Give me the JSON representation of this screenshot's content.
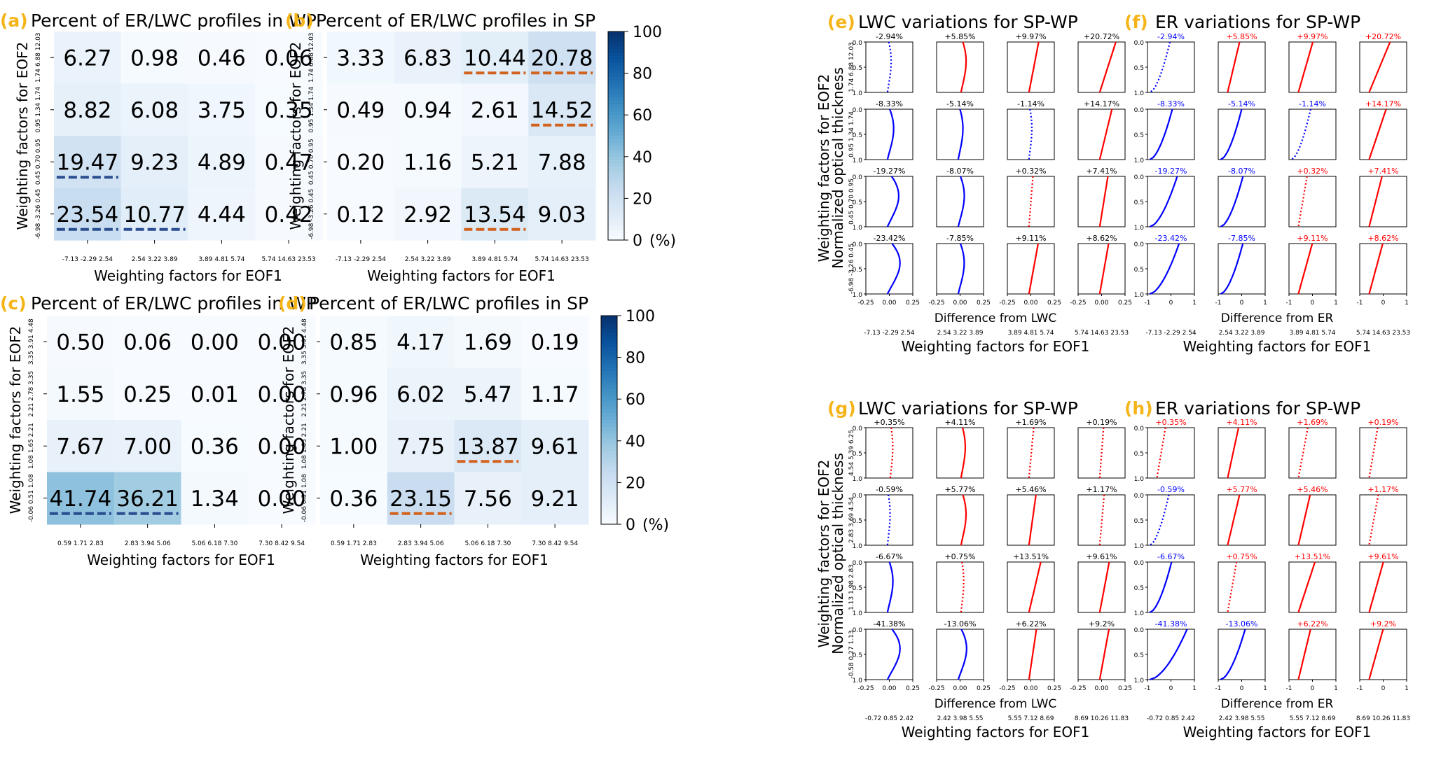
{
  "colors": {
    "panel_letter": "#F5B417",
    "underline_blue": "#2A4E8F",
    "underline_orange": "#D2631E",
    "line_blue": "#0000FF",
    "line_red": "#FF0000"
  },
  "colorbar": {
    "ticks": [
      "100",
      "80",
      "60",
      "40",
      "20",
      "0"
    ],
    "unit": "(%)"
  },
  "chart_data": [
    {
      "id": "a",
      "type": "heatmap",
      "letter": "(a)",
      "title": "Percent of ER/LWC profiles in WP",
      "xlabel": "Weighting factors for EOF1",
      "ylabel": "Weighting factors for EOF2",
      "x_ticks": [
        "-7.13 -2.29 2.54",
        "2.54 3.22 3.89",
        "3.89 4.81 5.74",
        "5.74 14.63 23.53"
      ],
      "y_ticks": [
        "-6.98 -3.26 0.45",
        "0.45 0.70 0.95",
        "0.95 1.34 1.74",
        "1.74 6.88 12.03"
      ],
      "values": [
        [
          6.27,
          0.98,
          0.46,
          0.06
        ],
        [
          8.82,
          6.08,
          3.75,
          0.35
        ],
        [
          19.47,
          9.23,
          4.89,
          0.47
        ],
        [
          23.54,
          10.77,
          4.44,
          0.42
        ]
      ],
      "labels": [
        [
          "6.27",
          "0.98",
          "0.46",
          "0.06"
        ],
        [
          "8.82",
          "6.08",
          "3.75",
          "0.35"
        ],
        [
          "19.47",
          "9.23",
          "4.89",
          "0.47"
        ],
        [
          "23.54",
          "10.77",
          "4.44",
          "0.42"
        ]
      ],
      "underlined": [
        [
          2,
          0
        ],
        [
          3,
          0
        ],
        [
          3,
          1
        ]
      ],
      "underline_color": "blue",
      "vmin": 0,
      "vmax": 100
    },
    {
      "id": "b",
      "type": "heatmap",
      "letter": "(b)",
      "title": "Percent of ER/LWC profiles in SP",
      "xlabel": "Weighting factors for EOF1",
      "ylabel": "Weighting factors for EOF2",
      "x_ticks": [
        "-7.13 -2.29 2.54",
        "2.54 3.22 3.89",
        "3.89 4.81 5.74",
        "5.74 14.63 23.53"
      ],
      "y_ticks": [
        "-6.98 -3.26 0.45",
        "0.45 0.70 0.95",
        "0.95 1.34 1.74",
        "1.74 6.88 12.03"
      ],
      "values": [
        [
          3.33,
          6.83,
          10.44,
          20.78
        ],
        [
          0.49,
          0.94,
          2.61,
          14.52
        ],
        [
          0.2,
          1.16,
          5.21,
          7.88
        ],
        [
          0.12,
          2.92,
          13.54,
          9.03
        ]
      ],
      "labels": [
        [
          "3.33",
          "6.83",
          "10.44",
          "20.78"
        ],
        [
          "0.49",
          "0.94",
          "2.61",
          "14.52"
        ],
        [
          "0.20",
          "1.16",
          "5.21",
          "7.88"
        ],
        [
          "0.12",
          "2.92",
          "13.54",
          "9.03"
        ]
      ],
      "underlined": [
        [
          0,
          2
        ],
        [
          0,
          3
        ],
        [
          1,
          3
        ],
        [
          3,
          2
        ]
      ],
      "underline_color": "orange",
      "vmin": 0,
      "vmax": 100
    },
    {
      "id": "c",
      "type": "heatmap",
      "letter": "(c)",
      "title": "Percent of ER/LWC profiles in WP",
      "xlabel": "Weighting factors for EOF1",
      "ylabel": "Weighting factors for EOF2",
      "x_ticks": [
        "0.59 1.71 2.83",
        "2.83 3.94 5.06",
        "5.06 6.18 7.30",
        "7.30 8.42 9.54"
      ],
      "y_ticks": [
        "-0.06 0.51 1.08",
        "1.08 1.65 2.21",
        "2.21 2.78 3.35",
        "3.35 3.91 4.48"
      ],
      "values": [
        [
          0.5,
          0.06,
          0.0,
          0.0
        ],
        [
          1.55,
          0.25,
          0.01,
          0.0
        ],
        [
          7.67,
          7.0,
          0.36,
          0.0
        ],
        [
          41.74,
          36.21,
          1.34,
          0.0
        ]
      ],
      "labels": [
        [
          "0.50",
          "0.06",
          "0.00",
          "0.00"
        ],
        [
          "1.55",
          "0.25",
          "0.01",
          "0.00"
        ],
        [
          "7.67",
          "7.00",
          "0.36",
          "0.00"
        ],
        [
          "41.74",
          "36.21",
          "1.34",
          "0.00"
        ]
      ],
      "underlined": [
        [
          3,
          0
        ],
        [
          3,
          1
        ]
      ],
      "underline_color": "blue",
      "vmin": 0,
      "vmax": 100
    },
    {
      "id": "d",
      "type": "heatmap",
      "letter": "(d)",
      "title": "Percent of ER/LWC profiles in SP",
      "xlabel": "Weighting factors for EOF1",
      "ylabel": "Weighting factors for EOF2",
      "x_ticks": [
        "0.59 1.71 2.83",
        "2.83 3.94 5.06",
        "5.06 6.18 7.30",
        "7.30 8.42 9.54"
      ],
      "y_ticks": [
        "-0.06 0.51 1.08",
        "1.08 1.65 2.21",
        "2.21 2.78 3.35",
        "3.35 3.91 4.48"
      ],
      "values": [
        [
          0.85,
          4.17,
          1.69,
          0.19
        ],
        [
          0.96,
          6.02,
          5.47,
          1.17
        ],
        [
          1.0,
          7.75,
          13.87,
          9.61
        ],
        [
          0.36,
          23.15,
          7.56,
          9.21
        ]
      ],
      "labels": [
        [
          "0.85",
          "4.17",
          "1.69",
          "0.19"
        ],
        [
          "0.96",
          "6.02",
          "5.47",
          "1.17"
        ],
        [
          "1.00",
          "7.75",
          "13.87",
          "9.61"
        ],
        [
          "0.36",
          "23.15",
          "7.56",
          "9.21"
        ]
      ],
      "underlined": [
        [
          2,
          2
        ],
        [
          3,
          1
        ]
      ],
      "underline_color": "orange",
      "vmin": 0,
      "vmax": 100
    },
    {
      "id": "e",
      "type": "line",
      "letter": "(e)",
      "title": "LWC variations for SP-WP",
      "kind": "lwc",
      "xlabel_inner": "Difference from LWC",
      "xlabel": "Weighting factors for EOF1",
      "ylabel": "Weighting factors for EOF2",
      "ylabel_inner": "Normalized optical thickness",
      "x_ticks": [
        "-7.13 -2.29 2.54",
        "2.54 3.22 3.89",
        "3.89 4.81 5.74",
        "5.74 14.63 23.53"
      ],
      "y_ticks": [
        "-6.98 -3.26 0.45",
        "0.45 0.70 0.95",
        "0.95 1.34 1.74",
        "1.74 6.88 12.03"
      ],
      "y_range": [
        0,
        1
      ],
      "x_range": [
        -0.25,
        0.25
      ],
      "y_tick_labels": [
        "0.0",
        "0.5",
        "1.0"
      ],
      "x_tick_labels": [
        "-0.25",
        "0.00",
        "0.25"
      ],
      "pct": [
        [
          "-2.94%",
          "+5.85%",
          "+9.97%",
          "+20.72%"
        ],
        [
          "-8.33%",
          "-5.14%",
          "-1.14%",
          "+14.17%"
        ],
        [
          "-19.27%",
          "-8.07%",
          "+0.32%",
          "+7.41%"
        ],
        [
          "-23.42%",
          "-7.85%",
          "+9.11%",
          "+8.62%"
        ]
      ],
      "line_color": [
        [
          "blue",
          "red",
          "red",
          "red"
        ],
        [
          "blue",
          "blue",
          "blue",
          "red"
        ],
        [
          "blue",
          "blue",
          "red",
          "red"
        ],
        [
          "blue",
          "blue",
          "red",
          "red"
        ]
      ],
      "dotted": [
        [
          true,
          false,
          false,
          false
        ],
        [
          false,
          false,
          true,
          false
        ],
        [
          false,
          false,
          true,
          false
        ],
        [
          false,
          false,
          false,
          false
        ]
      ],
      "label_color": "black"
    },
    {
      "id": "f",
      "type": "line",
      "letter": "(f)",
      "title": "ER variations for SP-WP",
      "kind": "er",
      "xlabel_inner": "Difference from ER",
      "xlabel": "Weighting factors for EOF1",
      "x_ticks": [
        "-7.13 -2.29 2.54",
        "2.54 3.22 3.89",
        "3.89 4.81 5.74",
        "5.74 14.63 23.53"
      ],
      "y_range": [
        0,
        1
      ],
      "x_range": [
        -1,
        1
      ],
      "y_tick_labels": [
        "0.0",
        "0.5",
        "1.0"
      ],
      "x_tick_labels": [
        "-1",
        "0",
        "1"
      ],
      "pct": [
        [
          "-2.94%",
          "+5.85%",
          "+9.97%",
          "+20.72%"
        ],
        [
          "-8.33%",
          "-5.14%",
          "-1.14%",
          "+14.17%"
        ],
        [
          "-19.27%",
          "-8.07%",
          "+0.32%",
          "+7.41%"
        ],
        [
          "-23.42%",
          "-7.85%",
          "+9.11%",
          "+8.62%"
        ]
      ],
      "line_color": [
        [
          "blue",
          "red",
          "red",
          "red"
        ],
        [
          "blue",
          "blue",
          "blue",
          "red"
        ],
        [
          "blue",
          "blue",
          "red",
          "red"
        ],
        [
          "blue",
          "blue",
          "red",
          "red"
        ]
      ],
      "dotted": [
        [
          true,
          false,
          false,
          false
        ],
        [
          false,
          false,
          true,
          false
        ],
        [
          false,
          false,
          true,
          false
        ],
        [
          false,
          false,
          false,
          false
        ]
      ],
      "label_color": "line"
    },
    {
      "id": "g",
      "type": "line",
      "letter": "(g)",
      "title": "LWC variations for SP-WP",
      "kind": "lwc",
      "xlabel_inner": "Difference from LWC",
      "xlabel": "Weighting factors for EOF1",
      "ylabel": "Weighting factors for EOF2",
      "ylabel_inner": "Normalized optical thickness",
      "x_ticks": [
        "-0.72 0.85 2.42",
        "2.42 3.98 5.55",
        "5.55 7.12 8.69",
        "8.69 10.26 11.83"
      ],
      "y_ticks": [
        "-0.58 0.27 1.13",
        "1.13 1.98 2.83",
        "2.83 3.69 4.54",
        "4.54 5.39 6.25"
      ],
      "y_range": [
        0,
        1
      ],
      "x_range": [
        -0.25,
        0.25
      ],
      "y_tick_labels": [
        "0.0",
        "0.5",
        "1.0"
      ],
      "x_tick_labels": [
        "-0.25",
        "0.00",
        "0.25"
      ],
      "pct": [
        [
          "+0.35%",
          "+4.11%",
          "+1.69%",
          "+0.19%"
        ],
        [
          "-0.59%",
          "+5.77%",
          "+5.46%",
          "+1.17%"
        ],
        [
          "-6.67%",
          "+0.75%",
          "+13.51%",
          "+9.61%"
        ],
        [
          "-41.38%",
          "-13.06%",
          "+6.22%",
          "+9.2%"
        ]
      ],
      "line_color": [
        [
          "red",
          "red",
          "red",
          "red"
        ],
        [
          "blue",
          "red",
          "red",
          "red"
        ],
        [
          "blue",
          "red",
          "red",
          "red"
        ],
        [
          "blue",
          "blue",
          "red",
          "red"
        ]
      ],
      "dotted": [
        [
          true,
          false,
          true,
          true
        ],
        [
          true,
          false,
          false,
          true
        ],
        [
          false,
          true,
          false,
          false
        ],
        [
          false,
          false,
          false,
          false
        ]
      ],
      "label_color": "black"
    },
    {
      "id": "h",
      "type": "line",
      "letter": "(h)",
      "title": "ER variations for SP-WP",
      "kind": "er",
      "xlabel_inner": "Difference from ER",
      "xlabel": "Weighting factors for EOF1",
      "x_ticks": [
        "-0.72 0.85 2.42",
        "2.42 3.98 5.55",
        "5.55 7.12 8.69",
        "8.69 10.26 11.83"
      ],
      "y_range": [
        0,
        1
      ],
      "x_range": [
        -1,
        1
      ],
      "y_tick_labels": [
        "0.0",
        "0.5",
        "1.0"
      ],
      "x_tick_labels": [
        "-1",
        "0",
        "1"
      ],
      "pct": [
        [
          "+0.35%",
          "+4.11%",
          "+1.69%",
          "+0.19%"
        ],
        [
          "-0.59%",
          "+5.77%",
          "+5.46%",
          "+1.17%"
        ],
        [
          "-6.67%",
          "+0.75%",
          "+13.51%",
          "+9.61%"
        ],
        [
          "-41.38%",
          "-13.06%",
          "+6.22%",
          "+9.2%"
        ]
      ],
      "line_color": [
        [
          "red",
          "red",
          "red",
          "red"
        ],
        [
          "blue",
          "red",
          "red",
          "red"
        ],
        [
          "blue",
          "red",
          "red",
          "red"
        ],
        [
          "blue",
          "blue",
          "red",
          "red"
        ]
      ],
      "dotted": [
        [
          true,
          false,
          true,
          true
        ],
        [
          true,
          false,
          false,
          true
        ],
        [
          false,
          true,
          false,
          false
        ],
        [
          false,
          false,
          false,
          false
        ]
      ],
      "label_color": "line"
    }
  ]
}
